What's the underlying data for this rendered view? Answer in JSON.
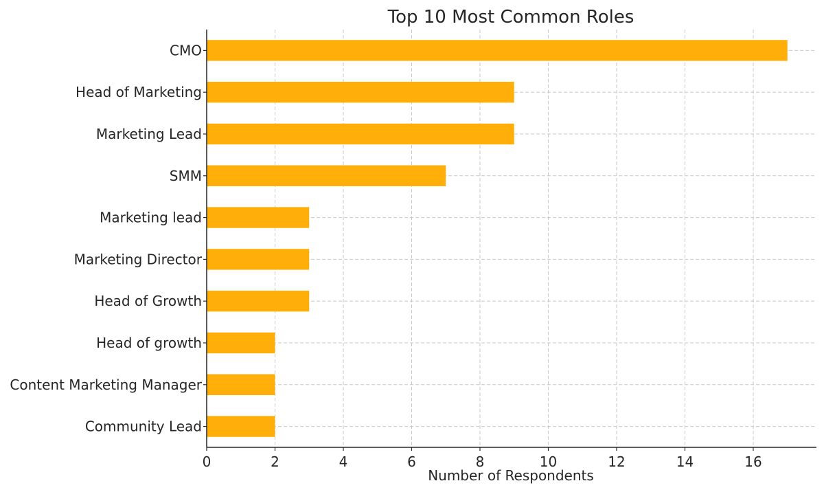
{
  "chart_data": {
    "type": "bar",
    "orientation": "horizontal",
    "title": "Top 10 Most Common Roles",
    "xlabel": "Number of Respondents",
    "ylabel": "",
    "categories": [
      "CMO",
      "Head of Marketing",
      "Marketing Lead",
      "SMM",
      "Marketing lead",
      "Marketing Director",
      "Head of Growth",
      "Head of growth",
      "Content Marketing Manager",
      "Community Lead"
    ],
    "values": [
      17,
      9,
      9,
      7,
      3,
      3,
      3,
      2,
      2,
      2
    ],
    "xlim": [
      0,
      17.85
    ],
    "xticks": [
      0,
      2,
      4,
      6,
      8,
      10,
      12,
      14,
      16
    ],
    "grid": true,
    "bar_color": "#FFAE0A"
  }
}
